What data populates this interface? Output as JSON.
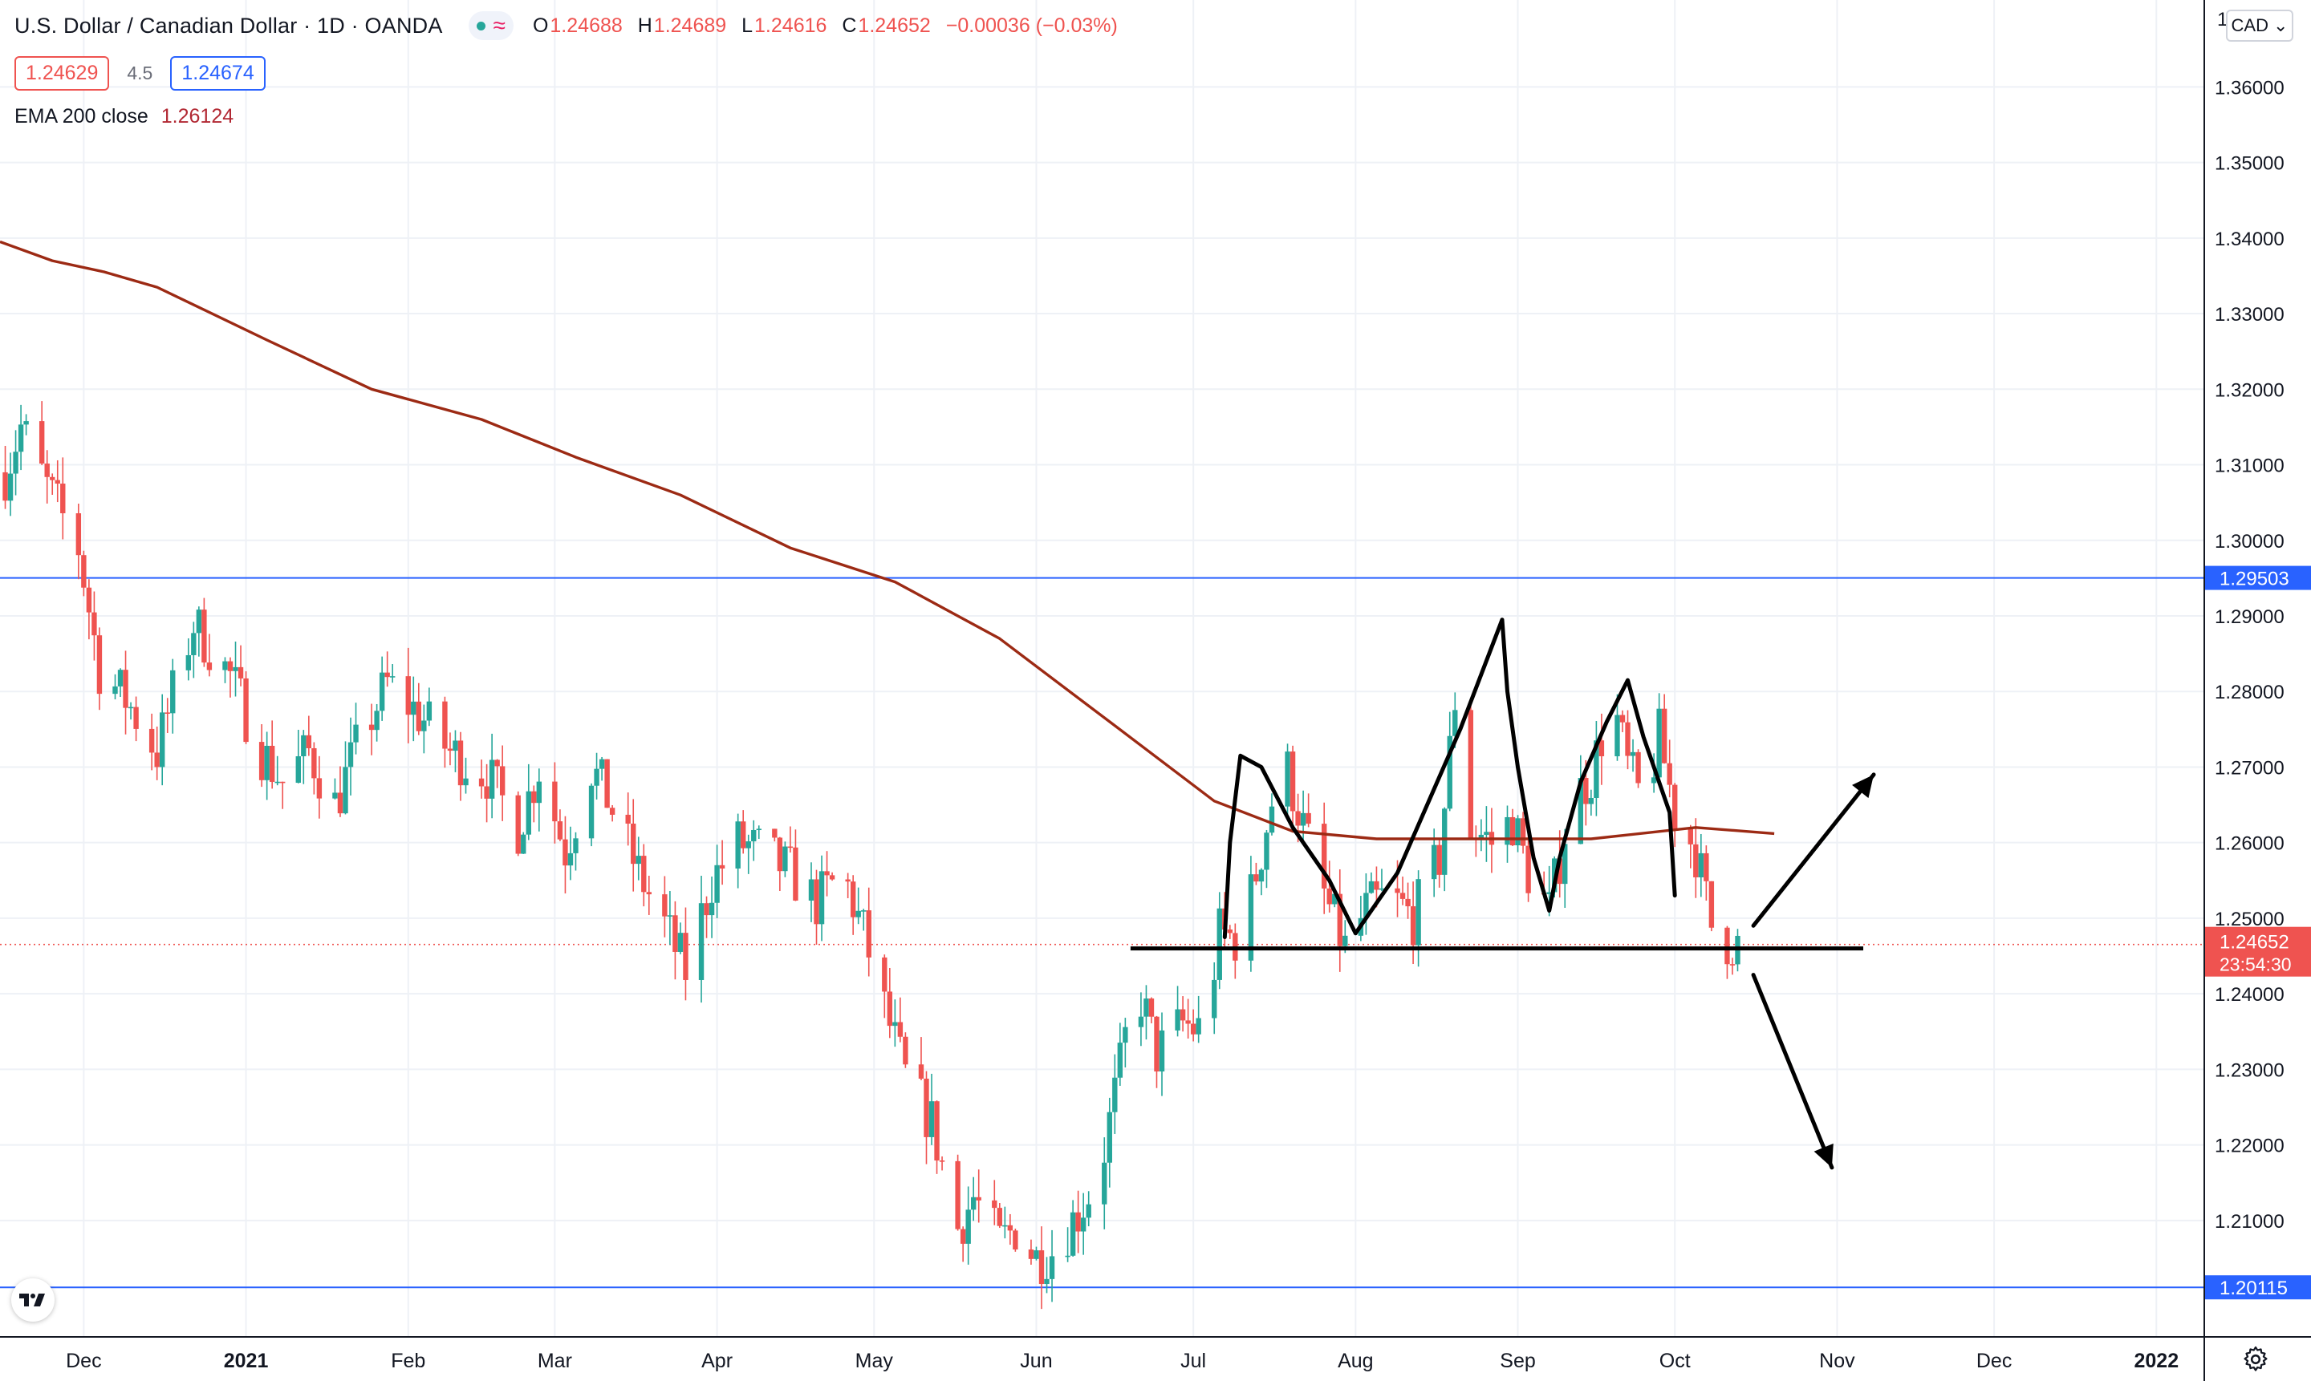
{
  "symbol": {
    "title": "U.S. Dollar / Canadian Dollar · 1D · OANDA",
    "status_icon": "green-dot",
    "wave_icon": "wave-icon",
    "open_key": "O",
    "open": "1.24688",
    "high_key": "H",
    "high": "1.24689",
    "low_key": "L",
    "low": "1.24616",
    "close_key": "C",
    "close": "1.24652",
    "change": "−0.00036 (−0.03%)"
  },
  "quote": {
    "bid": "1.24629",
    "spread": "4.5",
    "ask": "1.24674"
  },
  "indicator": {
    "name": "EMA 200 close",
    "value": "1.26124"
  },
  "price_axis": {
    "currency": "CAD",
    "currency_icon": "chevron-down-icon",
    "top_partial": "1",
    "labels": [
      "1.36000",
      "1.35000",
      "1.34000",
      "1.33000",
      "1.32000",
      "1.31000",
      "1.30000",
      "1.29000",
      "1.28000",
      "1.27000",
      "1.26000",
      "1.25000",
      "1.24000",
      "1.23000",
      "1.22000",
      "1.21000"
    ],
    "upper_line_label": "1.29503",
    "lower_line_label": "1.20115",
    "current_price": "1.24652",
    "countdown": "23:54:30"
  },
  "time_axis": {
    "labels": [
      "Dec",
      "2021",
      "Feb",
      "Mar",
      "Apr",
      "May",
      "Jun",
      "Jul",
      "Aug",
      "Sep",
      "Oct",
      "Nov",
      "Dec",
      "2022"
    ],
    "settings_icon": "gear-icon"
  },
  "colors": {
    "up": "#26a69a",
    "down": "#ef5350",
    "ema": "#9c2a14",
    "hline": "#2962ff",
    "drawing": "#000000",
    "grid": "#eef1f6"
  },
  "chart_data": {
    "type": "candlestick",
    "symbol": "USDCAD",
    "timeframe": "1D",
    "x_range": [
      "2020-11-15",
      "2022-01-10"
    ],
    "ylim": [
      1.1947,
      1.3715
    ],
    "y_ticks": [
      1.36,
      1.35,
      1.34,
      1.33,
      1.32,
      1.31,
      1.3,
      1.29,
      1.28,
      1.27,
      1.26,
      1.25,
      1.24,
      1.23,
      1.22,
      1.21
    ],
    "x_ticks": [
      "Dec",
      "2021",
      "Feb",
      "Mar",
      "Apr",
      "May",
      "Jun",
      "Jul",
      "Aug",
      "Sep",
      "Oct",
      "Nov",
      "Dec",
      "2022"
    ],
    "close_path": [
      [
        "2020-11-16",
        1.309
      ],
      [
        "2020-11-19",
        1.315
      ],
      [
        "2020-11-24",
        1.307
      ],
      [
        "2020-11-30",
        1.299
      ],
      [
        "2020-12-04",
        1.283
      ],
      [
        "2020-12-09",
        1.279
      ],
      [
        "2020-12-15",
        1.272
      ],
      [
        "2020-12-19",
        1.282
      ],
      [
        "2020-12-22",
        1.289
      ],
      [
        "2020-12-29",
        1.282
      ],
      [
        "2021-01-04",
        1.272
      ],
      [
        "2021-01-08",
        1.268
      ],
      [
        "2021-01-13",
        1.272
      ],
      [
        "2021-01-18",
        1.265
      ],
      [
        "2021-01-23",
        1.274
      ],
      [
        "2021-01-28",
        1.281
      ],
      [
        "2021-02-03",
        1.277
      ],
      [
        "2021-02-09",
        1.272
      ],
      [
        "2021-02-16",
        1.269
      ],
      [
        "2021-02-22",
        1.262
      ],
      [
        "2021-02-26",
        1.27
      ],
      [
        "2021-03-03",
        1.259
      ],
      [
        "2021-03-08",
        1.27
      ],
      [
        "2021-03-11",
        1.266
      ],
      [
        "2021-03-17",
        1.256
      ],
      [
        "2021-03-22",
        1.249
      ],
      [
        "2021-03-26",
        1.243
      ],
      [
        "2021-03-31",
        1.255
      ],
      [
        "2021-04-05",
        1.26
      ],
      [
        "2021-04-09",
        1.259
      ],
      [
        "2021-04-15",
        1.256
      ],
      [
        "2021-04-20",
        1.252
      ],
      [
        "2021-04-25",
        1.256
      ],
      [
        "2021-04-29",
        1.248
      ],
      [
        "2021-05-03",
        1.238
      ],
      [
        "2021-05-07",
        1.229
      ],
      [
        "2021-05-12",
        1.223
      ],
      [
        "2021-05-17",
        1.209
      ],
      [
        "2021-05-20",
        1.213
      ],
      [
        "2021-05-25",
        1.207
      ],
      [
        "2021-05-28",
        1.209
      ],
      [
        "2021-06-01",
        1.205
      ],
      [
        "2021-06-04",
        1.206
      ],
      [
        "2021-06-09",
        1.211
      ],
      [
        "2021-06-13",
        1.216
      ],
      [
        "2021-06-17",
        1.23
      ],
      [
        "2021-06-20",
        1.242
      ],
      [
        "2021-06-24",
        1.232
      ],
      [
        "2021-06-29",
        1.236
      ],
      [
        "2021-07-03",
        1.235
      ],
      [
        "2021-07-06",
        1.248
      ],
      [
        "2021-07-10",
        1.247
      ],
      [
        "2021-07-14",
        1.259
      ],
      [
        "2021-07-18",
        1.272
      ],
      [
        "2021-07-22",
        1.262
      ],
      [
        "2021-07-26",
        1.253
      ],
      [
        "2021-07-30",
        1.246
      ],
      [
        "2021-08-03",
        1.251
      ],
      [
        "2021-08-07",
        1.253
      ],
      [
        "2021-08-12",
        1.25
      ],
      [
        "2021-08-17",
        1.258
      ],
      [
        "2021-08-20",
        1.279
      ],
      [
        "2021-08-23",
        1.262
      ],
      [
        "2021-08-27",
        1.26
      ],
      [
        "2021-08-31",
        1.263
      ],
      [
        "2021-09-03",
        1.256
      ],
      [
        "2021-09-07",
        1.251
      ],
      [
        "2021-09-11",
        1.265
      ],
      [
        "2021-09-15",
        1.269
      ],
      [
        "2021-09-19",
        1.279
      ],
      [
        "2021-09-22",
        1.27
      ],
      [
        "2021-09-25",
        1.265
      ],
      [
        "2021-09-28",
        1.274
      ],
      [
        "2021-10-01",
        1.264
      ],
      [
        "2021-10-05",
        1.259
      ],
      [
        "2021-10-08",
        1.249
      ],
      [
        "2021-10-11",
        1.247
      ],
      [
        "2021-10-13",
        1.2465
      ]
    ],
    "ema_200": [
      [
        "2020-11-15",
        1.3395
      ],
      [
        "2020-11-25",
        1.337
      ],
      [
        "2020-12-05",
        1.3355
      ],
      [
        "2020-12-15",
        1.3335
      ],
      [
        "2021-01-05",
        1.3265
      ],
      [
        "2021-01-25",
        1.32
      ],
      [
        "2021-02-15",
        1.316
      ],
      [
        "2021-03-05",
        1.311
      ],
      [
        "2021-03-25",
        1.306
      ],
      [
        "2021-04-15",
        1.299
      ],
      [
        "2021-05-05",
        1.2945
      ],
      [
        "2021-05-25",
        1.287
      ],
      [
        "2021-06-15",
        1.276
      ],
      [
        "2021-07-05",
        1.2655
      ],
      [
        "2021-07-20",
        1.2615
      ],
      [
        "2021-08-05",
        1.2605
      ],
      [
        "2021-08-25",
        1.2605
      ],
      [
        "2021-09-15",
        1.2605
      ],
      [
        "2021-10-05",
        1.262
      ],
      [
        "2021-10-20",
        1.2612
      ]
    ],
    "horizontal_lines": [
      {
        "value": 1.29503,
        "label": "1.29503"
      },
      {
        "value": 1.20115,
        "label": "1.20115"
      }
    ],
    "current_price_line": 1.24652,
    "drawings": {
      "neckline": {
        "from": [
          "2021-06-19",
          1.246
        ],
        "to": [
          "2021-11-06",
          1.246
        ]
      },
      "pattern": [
        [
          "2021-07-07",
          1.2475
        ],
        [
          "2021-07-08",
          1.26
        ],
        [
          "2021-07-10",
          1.2715
        ],
        [
          "2021-07-14",
          1.27
        ],
        [
          "2021-07-20",
          1.262
        ],
        [
          "2021-07-27",
          1.255
        ],
        [
          "2021-08-01",
          1.248
        ],
        [
          "2021-08-09",
          1.256
        ],
        [
          "2021-08-21",
          1.275
        ],
        [
          "2021-08-29",
          1.2895
        ],
        [
          "2021-08-30",
          1.28
        ],
        [
          "2021-09-01",
          1.27
        ],
        [
          "2021-09-04",
          1.258
        ],
        [
          "2021-09-07",
          1.251
        ],
        [
          "2021-09-09",
          1.258
        ],
        [
          "2021-09-13",
          1.268
        ],
        [
          "2021-09-18",
          1.276
        ],
        [
          "2021-09-22",
          1.2815
        ],
        [
          "2021-09-25",
          1.274
        ],
        [
          "2021-09-30",
          1.264
        ],
        [
          "2021-10-01",
          1.253
        ]
      ],
      "arrow_up": {
        "from": [
          "2021-10-16",
          1.249
        ],
        "to": [
          "2021-11-08",
          1.269
        ]
      },
      "arrow_down": {
        "from": [
          "2021-10-16",
          1.2425
        ],
        "to": [
          "2021-10-31",
          1.217
        ]
      }
    }
  }
}
